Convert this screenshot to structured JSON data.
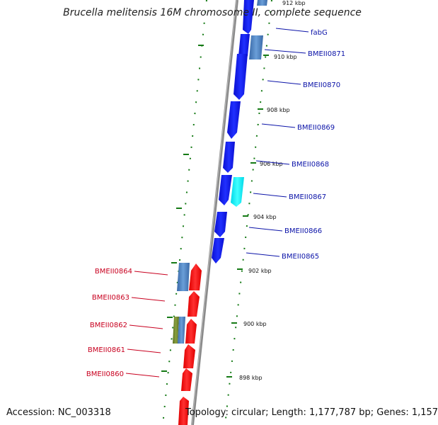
{
  "map": {
    "title": "Brucella melitensis 16M chromosome II, complete sequence",
    "accession": "Accession: NC_003318",
    "topology": "Topology: circular; Length: 1,177,787 bp; Genes: 1,157"
  },
  "colors": {
    "backbone": "#8a8a8a",
    "forward_blue": "#0b17f5",
    "forward_cyan": "#00ffff",
    "forward_steel": "#4a80c8",
    "reverse_red": "#ff1010",
    "reverse_steel": "#4a80c8",
    "reverse_olive": "#6f8a2a",
    "label_blue": "#0b13a8",
    "label_red": "#c8001f",
    "ruler_green": "#157a15"
  },
  "ticks": [
    {
      "kbp": 912,
      "label": "912 kbp"
    },
    {
      "kbp": 910,
      "label": "910 kbp"
    },
    {
      "kbp": 908,
      "label": "908 kbp"
    },
    {
      "kbp": 906,
      "label": "906 kbp"
    },
    {
      "kbp": 904,
      "label": "904 kbp"
    },
    {
      "kbp": 902,
      "label": "902 kbp"
    },
    {
      "kbp": 900,
      "label": "900 kbp"
    },
    {
      "kbp": 898,
      "label": "898 kbp"
    }
  ],
  "gene_labels": [
    {
      "name": "fabG",
      "strand": "forward"
    },
    {
      "name": "BMEII0871",
      "strand": "forward"
    },
    {
      "name": "BMEII0870",
      "strand": "forward"
    },
    {
      "name": "BMEII0869",
      "strand": "forward"
    },
    {
      "name": "BMEII0868",
      "strand": "forward"
    },
    {
      "name": "BMEII0867",
      "strand": "forward"
    },
    {
      "name": "BMEII0866",
      "strand": "forward"
    },
    {
      "name": "BMEII0865",
      "strand": "forward"
    },
    {
      "name": "BMEII0864",
      "strand": "reverse"
    },
    {
      "name": "BMEII0863",
      "strand": "reverse"
    },
    {
      "name": "BMEII0862",
      "strand": "reverse"
    },
    {
      "name": "BMEII0861",
      "strand": "reverse"
    },
    {
      "name": "BMEII0860",
      "strand": "reverse"
    }
  ]
}
